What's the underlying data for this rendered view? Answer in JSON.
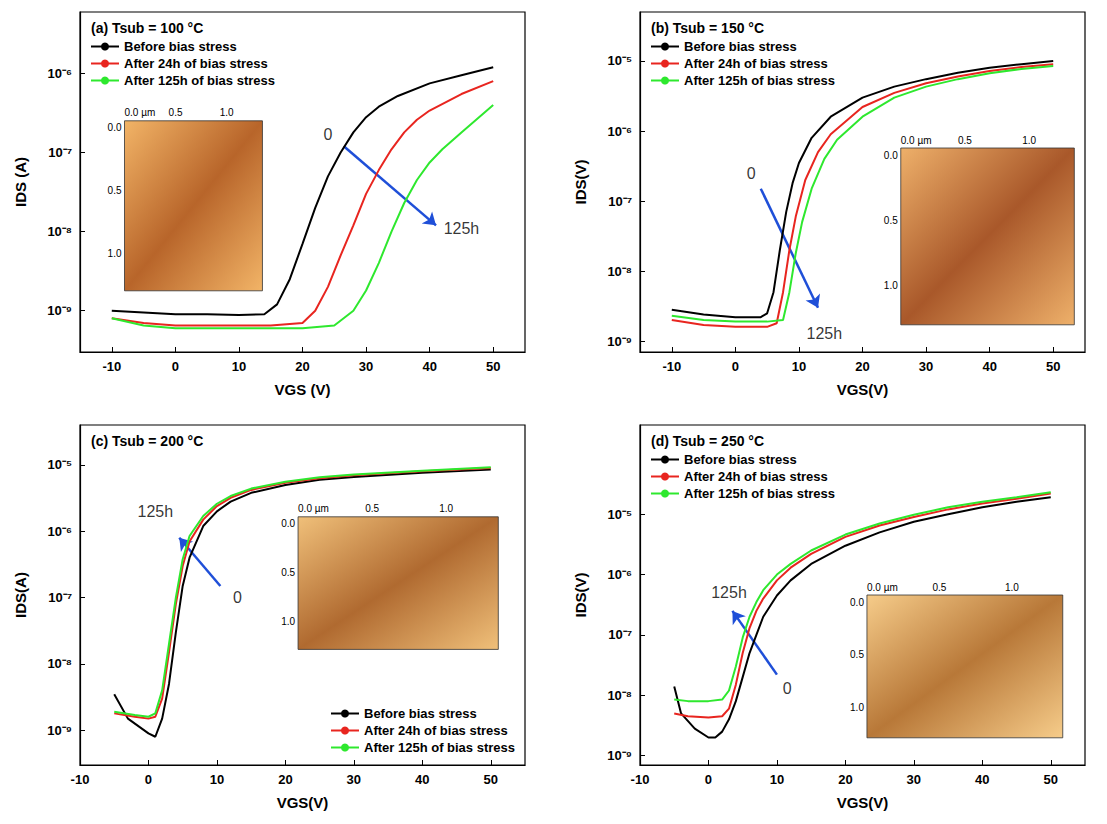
{
  "chart_data": [
    {
      "type": "line",
      "title": "(a) Tsub = 100 °C",
      "x_label": "VGS (V)",
      "y_label": "IDS (A)",
      "log": "y",
      "grid": false,
      "legend": "upper left",
      "xlim": [
        -15,
        55
      ],
      "xticks": [
        -10,
        0,
        10,
        20,
        30,
        40,
        50
      ],
      "ylim": [
        3e-10,
        6e-06
      ],
      "yticks": [
        {
          "value": 1e-09,
          "label": "10⁻⁹"
        },
        {
          "value": 1e-08,
          "label": "10⁻⁸"
        },
        {
          "value": 1e-07,
          "label": "10⁻⁷"
        },
        {
          "value": 1e-06,
          "label": "10⁻⁶"
        }
      ],
      "series": [
        {
          "name": "Before bias stress",
          "color": "#000000",
          "x": [
            -10,
            -5,
            0,
            5,
            10,
            14,
            16,
            18,
            20,
            22,
            24,
            26,
            28,
            30,
            32,
            35,
            40,
            45,
            50
          ],
          "values": [
            1e-09,
            9.5e-10,
            9e-10,
            9e-10,
            8.8e-10,
            9e-10,
            1.2e-09,
            2.5e-09,
            7e-09,
            2e-08,
            5e-08,
            1e-07,
            1.8e-07,
            2.8e-07,
            3.8e-07,
            5.2e-07,
            7.5e-07,
            9.5e-07,
            1.2e-06
          ]
        },
        {
          "name": "After 24h of bias stress",
          "color": "#e8251f",
          "x": [
            -10,
            -5,
            0,
            5,
            10,
            15,
            20,
            22,
            24,
            26,
            28,
            30,
            32,
            34,
            36,
            38,
            40,
            45,
            50
          ],
          "values": [
            8e-10,
            7e-10,
            6.5e-10,
            6.5e-10,
            6.5e-10,
            6.5e-10,
            7e-10,
            1e-09,
            2e-09,
            5e-09,
            1.2e-08,
            3e-08,
            6e-08,
            1.1e-07,
            1.8e-07,
            2.6e-07,
            3.4e-07,
            5.5e-07,
            8e-07
          ]
        },
        {
          "name": "After 125h of bias stress",
          "color": "#2ee82e",
          "x": [
            -10,
            -5,
            0,
            5,
            10,
            15,
            20,
            25,
            28,
            30,
            32,
            34,
            36,
            38,
            40,
            42,
            45,
            50
          ],
          "values": [
            8e-10,
            6.5e-10,
            6e-10,
            6e-10,
            6e-10,
            6e-10,
            6e-10,
            6.5e-10,
            1e-09,
            1.8e-09,
            4e-09,
            1e-08,
            2.3e-08,
            4.5e-08,
            7.5e-08,
            1.1e-07,
            1.8e-07,
            4e-07
          ]
        }
      ],
      "annotations": [
        {
          "text": "0",
          "x": 24,
          "y": 1.7e-07
        },
        {
          "text": "125h",
          "x": 45,
          "y": 1.1e-08
        }
      ],
      "arrow": {
        "from": [
          26.5,
          1.2e-07
        ],
        "to": [
          41,
          1.2e-08
        ],
        "color": "#1f4fd8"
      },
      "inset": {
        "x_labels": [
          "0.0 µm",
          "0.5",
          "1.0"
        ],
        "y_labels": [
          "0.0",
          "0.5",
          "1.0"
        ]
      }
    },
    {
      "type": "line",
      "title": "(b) Tsub = 150 °C",
      "x_label": "VGS(V)",
      "y_label": "IDS(V)",
      "log": "y",
      "grid": false,
      "legend": "upper left",
      "xlim": [
        -15,
        55
      ],
      "xticks": [
        -10,
        0,
        10,
        20,
        30,
        40,
        50
      ],
      "ylim": [
        7e-10,
        5e-05
      ],
      "yticks": [
        {
          "value": 1e-09,
          "label": "10⁻⁹"
        },
        {
          "value": 1e-08,
          "label": "10⁻⁸"
        },
        {
          "value": 1e-07,
          "label": "10⁻⁷"
        },
        {
          "value": 1e-06,
          "label": "10⁻⁶"
        },
        {
          "value": 1e-05,
          "label": "10⁻⁵"
        }
      ],
      "series": [
        {
          "name": "Before bias stress",
          "color": "#000000",
          "x": [
            -10,
            -5,
            0,
            4,
            5,
            6,
            7,
            8,
            9,
            10,
            12,
            15,
            20,
            25,
            30,
            35,
            40,
            45,
            50
          ],
          "values": [
            2.8e-09,
            2.4e-09,
            2.2e-09,
            2.2e-09,
            2.5e-09,
            5e-09,
            2e-08,
            7e-08,
            1.8e-07,
            3.5e-07,
            8e-07,
            1.6e-06,
            3e-06,
            4.3e-06,
            5.5e-06,
            6.8e-06,
            8e-06,
            9e-06,
            1e-05
          ]
        },
        {
          "name": "After 24h of bias stress",
          "color": "#e8251f",
          "x": [
            -10,
            -5,
            0,
            5,
            6.5,
            7.5,
            8.5,
            9.5,
            11,
            13,
            15,
            20,
            25,
            30,
            35,
            40,
            45,
            50
          ],
          "values": [
            2e-09,
            1.7e-09,
            1.6e-09,
            1.6e-09,
            1.8e-09,
            5e-09,
            2e-08,
            6e-08,
            2e-07,
            5e-07,
            9e-07,
            2.2e-06,
            3.5e-06,
            4.8e-06,
            6e-06,
            7.2e-06,
            8.2e-06,
            9e-06
          ]
        },
        {
          "name": "After 125h of bias stress",
          "color": "#2ee82e",
          "x": [
            -10,
            -5,
            0,
            5,
            7.5,
            8.5,
            9.5,
            10.5,
            12,
            14,
            16,
            20,
            25,
            30,
            35,
            40,
            45,
            50
          ],
          "values": [
            2.3e-09,
            2e-09,
            1.9e-09,
            1.9e-09,
            2e-09,
            5e-09,
            1.8e-08,
            5e-08,
            1.5e-07,
            4e-07,
            7.5e-07,
            1.6e-06,
            3e-06,
            4.3e-06,
            5.5e-06,
            6.7e-06,
            7.7e-06,
            8.5e-06
          ]
        }
      ],
      "annotations": [
        {
          "text": "0",
          "x": 2.5,
          "y": 2.5e-07
        },
        {
          "text": "125h",
          "x": 14,
          "y": 1.3e-09
        }
      ],
      "arrow": {
        "from": [
          4,
          1.5e-07
        ],
        "to": [
          13,
          3e-09
        ],
        "color": "#1f4fd8"
      },
      "inset": {
        "x_labels": [
          "0.0 µm",
          "0.5",
          "1.0"
        ],
        "y_labels": [
          "0.0",
          "0.5",
          "1.0"
        ]
      }
    },
    {
      "type": "line",
      "title": "(c) Tsub = 200 °C",
      "x_label": "VGS(V)",
      "y_label": "IDS(A)",
      "log": "y",
      "grid": false,
      "legend": "lower right",
      "xlim": [
        -10,
        55
      ],
      "xticks": [
        -10,
        0,
        10,
        20,
        30,
        40,
        50
      ],
      "ylim": [
        3e-10,
        4e-05
      ],
      "yticks": [
        {
          "value": 1e-09,
          "label": "10⁻⁹"
        },
        {
          "value": 1e-08,
          "label": "10⁻⁸"
        },
        {
          "value": 1e-07,
          "label": "10⁻⁷"
        },
        {
          "value": 1e-06,
          "label": "10⁻⁶"
        },
        {
          "value": 1e-05,
          "label": "10⁻⁵"
        }
      ],
      "series": [
        {
          "name": "Before bias stress",
          "color": "#000000",
          "x": [
            -5,
            -3,
            0,
            1,
            2,
            3,
            4,
            5,
            6,
            8,
            10,
            12,
            15,
            20,
            25,
            30,
            40,
            50
          ],
          "values": [
            3.5e-09,
            1.5e-09,
            9e-10,
            8e-10,
            1.5e-09,
            5e-09,
            3e-08,
            1.5e-07,
            4e-07,
            1.2e-06,
            2e-06,
            2.8e-06,
            3.8e-06,
            5e-06,
            6e-06,
            6.6e-06,
            7.6e-06,
            8.5e-06
          ]
        },
        {
          "name": "After 24h of bias stress",
          "color": "#e8251f",
          "x": [
            -5,
            -2,
            0,
            1,
            2,
            3,
            4,
            5,
            6,
            8,
            10,
            12,
            15,
            20,
            25,
            30,
            40,
            50
          ],
          "values": [
            1.8e-09,
            1.6e-09,
            1.5e-09,
            1.6e-09,
            3e-09,
            1.5e-08,
            8e-08,
            3e-07,
            7e-07,
            1.5e-06,
            2.4e-06,
            3.2e-06,
            4.2e-06,
            5.4e-06,
            6.3e-06,
            7e-06,
            8e-06,
            9e-06
          ]
        },
        {
          "name": "After 125h of bias stress",
          "color": "#2ee82e",
          "x": [
            -5,
            -2,
            0,
            1,
            2,
            3,
            4,
            5,
            6,
            8,
            10,
            12,
            15,
            20,
            25,
            30,
            40,
            50
          ],
          "values": [
            1.9e-09,
            1.7e-09,
            1.6e-09,
            1.8e-09,
            4e-09,
            2e-08,
            1e-07,
            3.8e-07,
            8.5e-07,
            1.7e-06,
            2.6e-06,
            3.4e-06,
            4.4e-06,
            5.6e-06,
            6.5e-06,
            7.2e-06,
            8.2e-06,
            9.2e-06
          ]
        }
      ],
      "annotations": [
        {
          "text": "0",
          "x": 13,
          "y": 1e-07
        },
        {
          "text": "125h",
          "x": 1,
          "y": 2e-06
        }
      ],
      "arrow": {
        "from": [
          10.5,
          1.5e-07
        ],
        "to": [
          4.5,
          8e-07
        ],
        "color": "#1f4fd8"
      },
      "inset": {
        "x_labels": [
          "0.0 µm",
          "0.5",
          "1.0"
        ],
        "y_labels": [
          "0.0",
          "0.5",
          "1.0"
        ]
      }
    },
    {
      "type": "line",
      "title": "(d) Tsub = 250 °C",
      "x_label": "VGS(V)",
      "y_label": "IDS(V)",
      "log": "y",
      "grid": false,
      "legend": "upper left",
      "xlim": [
        -10,
        55
      ],
      "xticks": [
        -10,
        0,
        10,
        20,
        30,
        40,
        50
      ],
      "ylim": [
        7e-10,
        0.0003
      ],
      "yticks": [
        {
          "value": 1e-09,
          "label": "10⁻⁹"
        },
        {
          "value": 1e-08,
          "label": "10⁻⁸"
        },
        {
          "value": 1e-07,
          "label": "10⁻⁷"
        },
        {
          "value": 1e-06,
          "label": "10⁻⁶"
        },
        {
          "value": 1e-05,
          "label": "10⁻⁵"
        }
      ],
      "series": [
        {
          "name": "Before bias stress",
          "color": "#000000",
          "x": [
            -5,
            -4,
            -2,
            0,
            1,
            2,
            3,
            4,
            5,
            6,
            7,
            8,
            10,
            12,
            15,
            20,
            25,
            30,
            35,
            40,
            45,
            50
          ],
          "values": [
            1.4e-08,
            5e-09,
            2.8e-09,
            2e-09,
            2e-09,
            2.5e-09,
            4e-09,
            8e-09,
            2e-08,
            5e-08,
            1e-07,
            2e-07,
            4.5e-07,
            8e-07,
            1.5e-06,
            3e-06,
            5e-06,
            7.5e-06,
            1e-05,
            1.3e-05,
            1.6e-05,
            1.9e-05
          ]
        },
        {
          "name": "After 24h of bias stress",
          "color": "#e8251f",
          "x": [
            -5,
            -3,
            0,
            2,
            3,
            4,
            5,
            6,
            7,
            8,
            10,
            12,
            15,
            20,
            25,
            30,
            35,
            40,
            45,
            50
          ],
          "values": [
            5e-09,
            4.5e-09,
            4.3e-09,
            4.5e-09,
            6e-09,
            1.5e-08,
            5e-08,
            1.3e-07,
            2.5e-07,
            4e-07,
            8e-07,
            1.3e-06,
            2.2e-06,
            4.2e-06,
            6.5e-06,
            9e-06,
            1.2e-05,
            1.5e-05,
            1.8e-05,
            2.2e-05
          ]
        },
        {
          "name": "After 125h of bias stress",
          "color": "#2ee82e",
          "x": [
            -5,
            -3,
            0,
            2,
            3,
            4,
            5,
            6,
            7,
            8,
            10,
            12,
            15,
            20,
            25,
            30,
            35,
            40,
            45,
            50
          ],
          "values": [
            8.5e-09,
            8e-09,
            8e-09,
            8.5e-09,
            1.2e-08,
            3e-08,
            9e-08,
            2e-07,
            3.5e-07,
            5.5e-07,
            1e-06,
            1.5e-06,
            2.5e-06,
            4.6e-06,
            7e-06,
            9.8e-06,
            1.3e-05,
            1.6e-05,
            1.9e-05,
            2.3e-05
          ]
        }
      ],
      "annotations": [
        {
          "text": "0",
          "x": 11.5,
          "y": 1.3e-08
        },
        {
          "text": "125h",
          "x": 3,
          "y": 5e-07
        }
      ],
      "arrow": {
        "from": [
          10,
          2.2e-08
        ],
        "to": [
          3.5,
          2.5e-07
        ],
        "color": "#1f4fd8"
      },
      "inset": {
        "x_labels": [
          "0.0 µm",
          "0.5",
          "1.0"
        ],
        "y_labels": [
          "0.0",
          "0.5",
          "1.0"
        ]
      }
    }
  ]
}
